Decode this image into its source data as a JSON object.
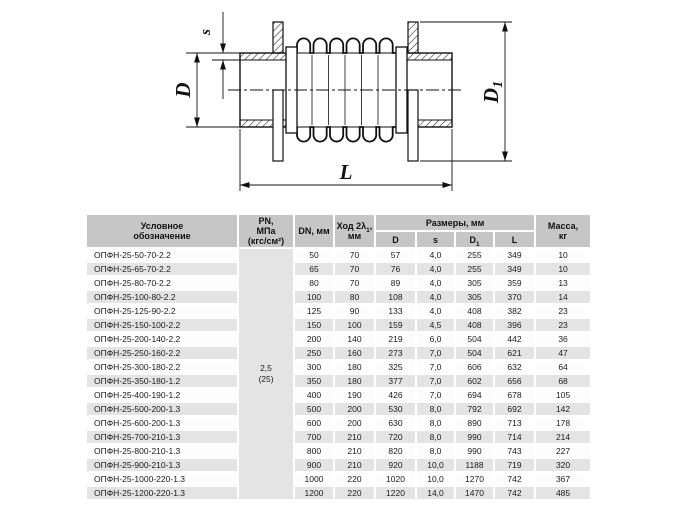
{
  "page": {
    "background": "#ffffff"
  },
  "diagram": {
    "labels": {
      "s": "s",
      "d": "D",
      "d1_base": "D",
      "d1_sub": "1",
      "l": "L"
    }
  },
  "table": {
    "colors": {
      "header_bg": "#c6c6c6",
      "row_odd_bg": "#ffffff",
      "row_even_bg": "#e4e4e4",
      "text": "#1c1c1c"
    },
    "headers": {
      "designation": [
        "Условное",
        "обозначение"
      ],
      "pn": [
        "PN,",
        "МПа",
        "(кгс/см²)"
      ],
      "dn": "DN, мм",
      "stroke_pre": "Ход 2λ",
      "stroke_sub": "1",
      "stroke_post": ",",
      "stroke_line2": "мм",
      "sizes_group": "Размеры, мм",
      "col_d": "D",
      "col_s": "s",
      "col_d1_base": "D",
      "col_d1_sub": "1",
      "col_l": "L",
      "mass": [
        "Масса,",
        "кг"
      ]
    },
    "pn_value": [
      "2,5",
      "(25)"
    ],
    "rows": [
      {
        "designation": "ОПФН-25-50-70-2.2",
        "dn": "50",
        "stroke": "70",
        "d": "57",
        "s": "4,0",
        "d1": "255",
        "l": "349",
        "mass": "10"
      },
      {
        "designation": "ОПФН-25-65-70-2.2",
        "dn": "65",
        "stroke": "70",
        "d": "76",
        "s": "4,0",
        "d1": "255",
        "l": "349",
        "mass": "10"
      },
      {
        "designation": "ОПФН-25-80-70-2.2",
        "dn": "80",
        "stroke": "70",
        "d": "89",
        "s": "4,0",
        "d1": "305",
        "l": "359",
        "mass": "13"
      },
      {
        "designation": "ОПФН-25-100-80-2.2",
        "dn": "100",
        "stroke": "80",
        "d": "108",
        "s": "4,0",
        "d1": "305",
        "l": "370",
        "mass": "14"
      },
      {
        "designation": "ОПФН-25-125-90-2.2",
        "dn": "125",
        "stroke": "90",
        "d": "133",
        "s": "4,0",
        "d1": "408",
        "l": "382",
        "mass": "23"
      },
      {
        "designation": "ОПФН-25-150-100-2.2",
        "dn": "150",
        "stroke": "100",
        "d": "159",
        "s": "4,5",
        "d1": "408",
        "l": "396",
        "mass": "23"
      },
      {
        "designation": "ОПФН-25-200-140-2.2",
        "dn": "200",
        "stroke": "140",
        "d": "219",
        "s": "6,0",
        "d1": "504",
        "l": "442",
        "mass": "36"
      },
      {
        "designation": "ОПФН-25-250-160-2.2",
        "dn": "250",
        "stroke": "160",
        "d": "273",
        "s": "7,0",
        "d1": "504",
        "l": "621",
        "mass": "47"
      },
      {
        "designation": "ОПФН-25-300-180-2.2",
        "dn": "300",
        "stroke": "180",
        "d": "325",
        "s": "7,0",
        "d1": "606",
        "l": "632",
        "mass": "64"
      },
      {
        "designation": "ОПФН-25-350-180-1.2",
        "dn": "350",
        "stroke": "180",
        "d": "377",
        "s": "7,0",
        "d1": "602",
        "l": "656",
        "mass": "68"
      },
      {
        "designation": "ОПФН-25-400-190-1.2",
        "dn": "400",
        "stroke": "190",
        "d": "426",
        "s": "7,0",
        "d1": "694",
        "l": "678",
        "mass": "105"
      },
      {
        "designation": "ОПФН-25-500-200-1.3",
        "dn": "500",
        "stroke": "200",
        "d": "530",
        "s": "8,0",
        "d1": "792",
        "l": "692",
        "mass": "142"
      },
      {
        "designation": "ОПФН-25-600-200-1.3",
        "dn": "600",
        "stroke": "200",
        "d": "630",
        "s": "8,0",
        "d1": "890",
        "l": "713",
        "mass": "178"
      },
      {
        "designation": "ОПФН-25-700-210-1.3",
        "dn": "700",
        "stroke": "210",
        "d": "720",
        "s": "8,0",
        "d1": "990",
        "l": "714",
        "mass": "214"
      },
      {
        "designation": "ОПФН-25-800-210-1.3",
        "dn": "800",
        "stroke": "210",
        "d": "820",
        "s": "8,0",
        "d1": "990",
        "l": "743",
        "mass": "227"
      },
      {
        "designation": "ОПФН-25-900-210-1.3",
        "dn": "900",
        "stroke": "210",
        "d": "920",
        "s": "10,0",
        "d1": "1188",
        "l": "719",
        "mass": "320"
      },
      {
        "designation": "ОПФН-25-1000-220-1.3",
        "dn": "1000",
        "stroke": "220",
        "d": "1020",
        "s": "10,0",
        "d1": "1270",
        "l": "742",
        "mass": "367"
      },
      {
        "designation": "ОПФН-25-1200-220-1.3",
        "dn": "1200",
        "stroke": "220",
        "d": "1220",
        "s": "14,0",
        "d1": "1470",
        "l": "742",
        "mass": "485"
      }
    ]
  }
}
